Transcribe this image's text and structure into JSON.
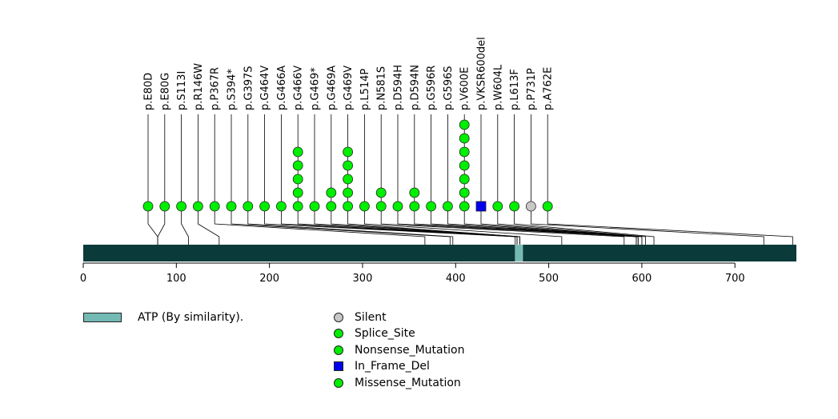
{
  "chart_data": {
    "type": "lollipop",
    "protein_length": 766,
    "x_ticks": [
      0,
      100,
      200,
      300,
      400,
      500,
      600,
      700
    ],
    "xlim": [
      0,
      766
    ],
    "domains": [
      {
        "label": "ATP (By similarity).",
        "start": 464,
        "end": 472,
        "color": "#73b9b4"
      }
    ],
    "backbone_color": "#0a3a3a",
    "mutations": [
      {
        "label": "p.E80D",
        "position": 80,
        "count": 1,
        "type": "Missense_Mutation"
      },
      {
        "label": "p.E80G",
        "position": 80,
        "count": 1,
        "type": "Missense_Mutation"
      },
      {
        "label": "p.S113I",
        "position": 113,
        "count": 1,
        "type": "Missense_Mutation"
      },
      {
        "label": "p.R146W",
        "position": 146,
        "count": 1,
        "type": "Missense_Mutation"
      },
      {
        "label": "p.P367R",
        "position": 367,
        "count": 1,
        "type": "Missense_Mutation"
      },
      {
        "label": "p.S394*",
        "position": 394,
        "count": 1,
        "type": "Nonsense_Mutation"
      },
      {
        "label": "p.G397S",
        "position": 397,
        "count": 1,
        "type": "Missense_Mutation"
      },
      {
        "label": "p.G464V",
        "position": 464,
        "count": 1,
        "type": "Missense_Mutation"
      },
      {
        "label": "p.G466A",
        "position": 466,
        "count": 1,
        "type": "Missense_Mutation"
      },
      {
        "label": "p.G466V",
        "position": 466,
        "count": 5,
        "type": "Missense_Mutation"
      },
      {
        "label": "p.G469*",
        "position": 469,
        "count": 1,
        "type": "Nonsense_Mutation"
      },
      {
        "label": "p.G469A",
        "position": 469,
        "count": 2,
        "type": "Missense_Mutation"
      },
      {
        "label": "p.G469V",
        "position": 469,
        "count": 5,
        "type": "Missense_Mutation"
      },
      {
        "label": "p.L514P",
        "position": 514,
        "count": 1,
        "type": "Missense_Mutation"
      },
      {
        "label": "p.N581S",
        "position": 581,
        "count": 2,
        "type": "Missense_Mutation"
      },
      {
        "label": "p.D594H",
        "position": 594,
        "count": 1,
        "type": "Missense_Mutation"
      },
      {
        "label": "p.D594N",
        "position": 594,
        "count": 2,
        "type": "Missense_Mutation"
      },
      {
        "label": "p.G596R",
        "position": 596,
        "count": 1,
        "type": "Missense_Mutation"
      },
      {
        "label": "p.G596S",
        "position": 596,
        "count": 1,
        "type": "Missense_Mutation"
      },
      {
        "label": "p.V600E",
        "position": 600,
        "count": 7,
        "type": "Missense_Mutation"
      },
      {
        "label": "p.VKSR600del",
        "position": 600,
        "count": 1,
        "type": "In_Frame_Del"
      },
      {
        "label": "p.W604L",
        "position": 604,
        "count": 1,
        "type": "Missense_Mutation"
      },
      {
        "label": "p.L613F",
        "position": 613,
        "count": 1,
        "type": "Missense_Mutation"
      },
      {
        "label": "p.P731P",
        "position": 731,
        "count": 1,
        "type": "Silent"
      },
      {
        "label": "p.A762E",
        "position": 762,
        "count": 1,
        "type": "Missense_Mutation"
      }
    ],
    "legend": [
      {
        "label": "Silent",
        "symbol": "circle",
        "color": "#c8c8c8"
      },
      {
        "label": "Splice_Site",
        "symbol": "circle",
        "color": "#00ee00"
      },
      {
        "label": "Nonsense_Mutation",
        "symbol": "circle",
        "color": "#00ee00"
      },
      {
        "label": "In_Frame_Del",
        "symbol": "square",
        "color": "#0000ee"
      },
      {
        "label": "Missense_Mutation",
        "symbol": "circle",
        "color": "#00ee00"
      }
    ],
    "type_colors": {
      "Silent": "#c8c8c8",
      "Splice_Site": "#00ee00",
      "Nonsense_Mutation": "#00ee00",
      "In_Frame_Del": "#0000ee",
      "Missense_Mutation": "#00ee00"
    }
  }
}
